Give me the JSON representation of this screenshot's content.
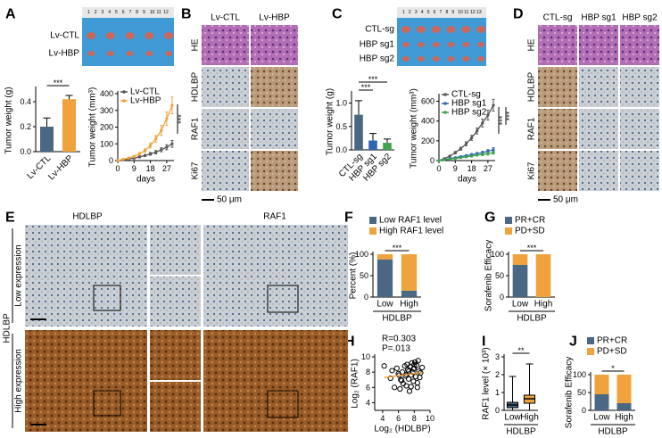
{
  "panel_letters": [
    "A",
    "B",
    "C",
    "D",
    "E",
    "F",
    "G",
    "H",
    "I",
    "J"
  ],
  "a_photo": {
    "ruler": [
      "1",
      "2",
      "3",
      "4",
      "5",
      "6",
      "7",
      "8",
      "9",
      "10",
      "11",
      "12"
    ],
    "rows": [
      "Lv-CTL",
      "Lv-HBP"
    ]
  },
  "b_stain": {
    "columns": [
      "Lv-CTL",
      "Lv-HBP"
    ],
    "rows": [
      "HE",
      "HDLBP",
      "RAF1",
      "Ki67"
    ],
    "scale": "50 μm"
  },
  "c_photo": {
    "ruler": [
      "1",
      "2",
      "3",
      "4",
      "5",
      "6",
      "7",
      "8",
      "9",
      "10",
      "11",
      "12",
      "13"
    ],
    "rows": [
      "CTL-sg",
      "HBP sg1",
      "HBP sg2"
    ]
  },
  "d_stain": {
    "columns": [
      "CTL-sg",
      "HBP sg1",
      "HBP sg2"
    ],
    "rows": [
      "HE",
      "HDLBP",
      "RAF1",
      "Ki67"
    ],
    "scale": "50 μm"
  },
  "e_stain": {
    "columns": [
      "HDLBP",
      "RAF1"
    ],
    "rows": [
      "Low expression",
      "High expression"
    ],
    "group": "HDLBP"
  },
  "chart_data": [
    {
      "type": "bar",
      "ylabel": "Tumor weight (g)",
      "categories": [
        "Lv-CTL",
        "Lv-HBP"
      ],
      "values": [
        0.2,
        0.42
      ],
      "errors": [
        0.07,
        0.03
      ],
      "colors": [
        "#4a6784",
        "#f0a23c"
      ],
      "ylim": [
        0,
        0.5
      ],
      "yticks": [
        {
          "value": 0,
          "label": "0.0"
        },
        0.2,
        0.4
      ],
      "significance": [
        "***"
      ]
    },
    {
      "type": "line",
      "ylabel": "Tumor weight (mm³)",
      "xlabel": "days",
      "x": [
        0,
        3,
        6,
        9,
        12,
        15,
        18,
        21,
        24,
        27,
        30
      ],
      "xlim": [
        0,
        31
      ],
      "xticks": [
        0,
        9,
        18,
        27
      ],
      "ylim": [
        0,
        400
      ],
      "yticks": [
        0,
        100,
        200,
        300,
        400
      ],
      "series": [
        {
          "name": "Lv-CTL",
          "color": "#555555",
          "values": [
            0,
            5,
            10,
            15,
            22,
            30,
            40,
            50,
            65,
            80,
            100
          ],
          "errors": [
            0,
            2,
            3,
            4,
            5,
            6,
            8,
            10,
            12,
            15,
            20
          ]
        },
        {
          "name": "Lv-HBP",
          "color": "#f0a23c",
          "values": [
            0,
            8,
            15,
            25,
            40,
            60,
            90,
            130,
            180,
            250,
            330
          ],
          "errors": [
            0,
            3,
            5,
            6,
            8,
            10,
            15,
            20,
            30,
            40,
            50
          ]
        }
      ],
      "significance": [
        "***"
      ]
    },
    {
      "type": "bar",
      "ylabel": "Tumor weight (g)",
      "categories": [
        "CTL-sg",
        "HBP sg1",
        "HBP sg2"
      ],
      "values": [
        0.75,
        0.2,
        0.15
      ],
      "errors": [
        0.3,
        0.15,
        0.08
      ],
      "colors": [
        "#4a6784",
        "#2f66b3",
        "#3fa34d"
      ],
      "ylim": [
        0,
        1.2
      ],
      "yticks": [
        {
          "value": 0,
          "label": "0.0"
        },
        0.5,
        {
          "value": 1,
          "label": "1.0"
        }
      ],
      "significance": [
        "***",
        "***"
      ]
    },
    {
      "type": "line",
      "ylabel": "Tumor weight (mm³)",
      "xlabel": "days",
      "x": [
        0,
        3,
        6,
        9,
        12,
        15,
        18,
        21,
        24,
        27,
        30
      ],
      "xlim": [
        0,
        31
      ],
      "xticks": [
        0,
        9,
        18,
        27
      ],
      "ylim": [
        0,
        650
      ],
      "yticks": [
        0,
        200,
        400,
        600
      ],
      "series": [
        {
          "name": "CTL-sg",
          "color": "#555555",
          "values": [
            0,
            20,
            45,
            80,
            120,
            170,
            230,
            300,
            380,
            460,
            560
          ],
          "errors": [
            0,
            5,
            8,
            12,
            15,
            20,
            25,
            30,
            40,
            50,
            60
          ]
        },
        {
          "name": "HBP sg1",
          "color": "#2f66b3",
          "values": [
            0,
            10,
            20,
            30,
            40,
            50,
            60,
            70,
            80,
            95,
            110
          ],
          "errors": [
            0,
            3,
            4,
            5,
            6,
            8,
            10,
            12,
            14,
            16,
            20
          ]
        },
        {
          "name": "HBP sg2",
          "color": "#3fa34d",
          "values": [
            0,
            8,
            15,
            22,
            30,
            38,
            45,
            55,
            62,
            70,
            80
          ],
          "errors": [
            0,
            3,
            4,
            5,
            6,
            7,
            8,
            10,
            12,
            14,
            16
          ]
        }
      ],
      "significance": [
        "***",
        "***"
      ]
    },
    {
      "type": "stacked",
      "ylabel": "Percent (%)",
      "xlabel": "HDLBP",
      "categories": [
        "Low",
        "High"
      ],
      "ylim": [
        0,
        100
      ],
      "yticks": [
        0,
        50,
        100
      ],
      "series": [
        {
          "name": "Low RAF1 level",
          "color": "#4a6784",
          "values": [
            88,
            15
          ]
        },
        {
          "name": "High RAF1 level",
          "color": "#f0a23c",
          "values": [
            12,
            85
          ]
        }
      ],
      "significance": [
        "***"
      ]
    },
    {
      "type": "stacked",
      "ylabel": "Sorafenib Efficacy",
      "xlabel": "HDLBP",
      "categories": [
        "Low",
        "High"
      ],
      "ylim": [
        0,
        100
      ],
      "yticks": [
        0,
        50,
        100
      ],
      "series": [
        {
          "name": "PR+CR",
          "color": "#4a6784",
          "values": [
            75,
            0
          ]
        },
        {
          "name": "PD+SD",
          "color": "#f0a23c",
          "values": [
            25,
            100
          ]
        }
      ],
      "significance": [
        "***"
      ]
    },
    {
      "type": "scatter",
      "ylabel": "Log₂ (RAF1)",
      "xlabel": "Log₂ (HDLBP)",
      "annotations": [
        "R=0.303",
        "P=.013"
      ],
      "color": "#000000",
      "line_color": "#f0a23c",
      "xlim": [
        3,
        10
      ],
      "xticks": [
        4,
        6,
        8,
        10
      ],
      "ylim": [
        3,
        10
      ],
      "yticks": [
        4,
        6,
        8,
        10
      ],
      "x": [
        4.2,
        5.0,
        5.5,
        5.8,
        6.0,
        6.2,
        6.3,
        6.5,
        6.6,
        6.8,
        6.9,
        7.0,
        7.1,
        7.2,
        7.3,
        7.4,
        7.5,
        7.6,
        7.7,
        7.8,
        7.9,
        8.0,
        8.1,
        8.2,
        8.3,
        8.4,
        8.5,
        8.6,
        8.8,
        9.0,
        6.4,
        7.0,
        7.6,
        8.0,
        5.2,
        7.3,
        8.7,
        6.1,
        7.9,
        8.4
      ],
      "y": [
        8.8,
        7.2,
        6.0,
        8.5,
        7.8,
        5.8,
        7.0,
        8.0,
        6.5,
        8.8,
        7.5,
        6.2,
        9.0,
        8.3,
        7.1,
        5.5,
        8.7,
        7.6,
        9.2,
        8.0,
        6.8,
        8.5,
        9.3,
        7.4,
        8.9,
        6.6,
        9.5,
        8.1,
        7.9,
        8.6,
        6.9,
        7.7,
        6.1,
        9.0,
        8.2,
        8.1,
        7.3,
        7.6,
        8.4,
        6.0
      ]
    },
    {
      "type": "box",
      "ylabel": "RAF1 level (× 10³)",
      "xlabel": "HDLBP",
      "categories": [
        "Low",
        "High"
      ],
      "colors": [
        "#4a6784",
        "#f0a23c"
      ],
      "ylim": [
        0,
        3
      ],
      "yticks": [
        0,
        1,
        2,
        3
      ],
      "boxes": [
        {
          "min": 0,
          "q1": 0.15,
          "median": 0.3,
          "q3": 0.45,
          "max": 1.9
        },
        {
          "min": 0,
          "q1": 0.4,
          "median": 0.65,
          "q3": 0.85,
          "max": 2.6
        }
      ],
      "significance": [
        "**"
      ]
    },
    {
      "type": "stacked",
      "ylabel": "Sorafenib Efficacy",
      "xlabel": "HDLBP",
      "categories": [
        "Low",
        "High"
      ],
      "ylim": [
        0,
        100
      ],
      "yticks": [
        0,
        50,
        100
      ],
      "series": [
        {
          "name": "PR+CR",
          "color": "#4a6784",
          "values": [
            45,
            20
          ]
        },
        {
          "name": "PD+SD",
          "color": "#f0a23c",
          "values": [
            55,
            80
          ]
        }
      ],
      "significance": [
        "*"
      ]
    }
  ]
}
